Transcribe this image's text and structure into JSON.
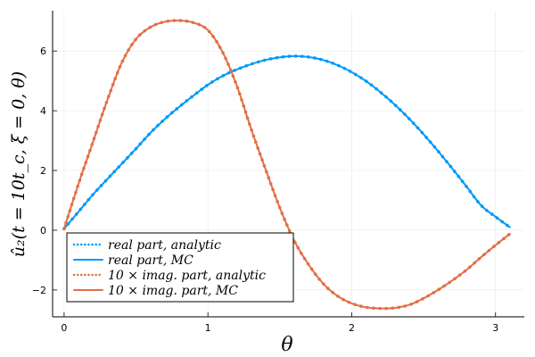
{
  "chart_data": {
    "type": "line",
    "xlabel": "θ",
    "ylabel": "û₂(t = 10t_c, ξ = 0, θ)",
    "xlim": [
      -0.08,
      3.2
    ],
    "ylim": [
      -2.9,
      7.35
    ],
    "xticks": [
      0,
      1,
      2,
      3
    ],
    "yticks": [
      -2,
      0,
      2,
      4,
      6
    ],
    "grid": true,
    "legend_position": "bottom-left",
    "colors": {
      "real": "#009af9",
      "imag": "#e26f46"
    },
    "x": [
      0.0,
      0.1,
      0.2,
      0.3,
      0.4,
      0.5,
      0.6,
      0.7,
      0.8,
      0.9,
      1.0,
      1.1,
      1.2,
      1.3,
      1.4,
      1.5,
      1.6,
      1.7,
      1.8,
      1.9,
      2.0,
      2.1,
      2.2,
      2.3,
      2.4,
      2.5,
      2.6,
      2.7,
      2.8,
      2.9,
      3.0,
      3.1
    ],
    "series": [
      {
        "name": "real part, analytic",
        "color_key": "real",
        "style": "dotted",
        "values": [
          0.05,
          0.62,
          1.19,
          1.71,
          2.22,
          2.73,
          3.26,
          3.72,
          4.13,
          4.51,
          4.87,
          5.16,
          5.38,
          5.56,
          5.7,
          5.79,
          5.83,
          5.8,
          5.7,
          5.53,
          5.29,
          4.99,
          4.62,
          4.2,
          3.73,
          3.21,
          2.65,
          2.06,
          1.45,
          0.83,
          0.45,
          0.1
        ]
      },
      {
        "name": "real part, MC",
        "color_key": "real",
        "style": "solid",
        "values": [
          0.05,
          0.62,
          1.19,
          1.71,
          2.22,
          2.73,
          3.26,
          3.72,
          4.13,
          4.51,
          4.87,
          5.16,
          5.38,
          5.56,
          5.7,
          5.79,
          5.83,
          5.8,
          5.7,
          5.53,
          5.29,
          4.99,
          4.62,
          4.2,
          3.73,
          3.21,
          2.65,
          2.06,
          1.45,
          0.83,
          0.45,
          0.1
        ]
      },
      {
        "name": "10 × imag. part, analytic",
        "color_key": "imag",
        "style": "dotted",
        "values": [
          0.05,
          1.55,
          2.95,
          4.35,
          5.6,
          6.4,
          6.8,
          6.98,
          7.02,
          6.95,
          6.7,
          5.98,
          4.85,
          3.4,
          2.05,
          0.75,
          -0.35,
          -1.15,
          -1.78,
          -2.2,
          -2.45,
          -2.58,
          -2.62,
          -2.6,
          -2.5,
          -2.28,
          -2.0,
          -1.68,
          -1.32,
          -0.9,
          -0.5,
          -0.12
        ]
      },
      {
        "name": "10 × imag. part, MC",
        "color_key": "imag",
        "style": "solid",
        "values": [
          0.05,
          1.55,
          2.95,
          4.35,
          5.6,
          6.4,
          6.8,
          6.98,
          7.02,
          6.95,
          6.7,
          5.98,
          4.85,
          3.4,
          2.05,
          0.75,
          -0.35,
          -1.15,
          -1.78,
          -2.2,
          -2.45,
          -2.58,
          -2.62,
          -2.6,
          -2.5,
          -2.28,
          -2.0,
          -1.68,
          -1.32,
          -0.9,
          -0.5,
          -0.12
        ]
      }
    ]
  }
}
